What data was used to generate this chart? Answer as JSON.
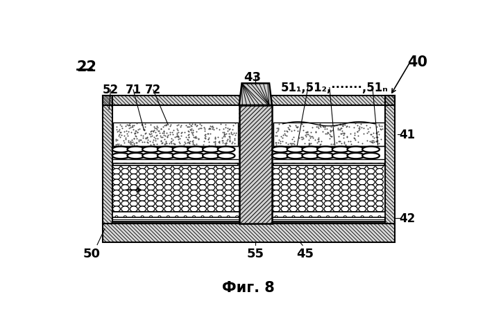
{
  "bg_color": "#ffffff",
  "line_color": "#000000",
  "fig_width": 6.99,
  "fig_height": 4.85,
  "title": "Фиг. 8",
  "label_22": "22",
  "label_40": "40",
  "label_41": "41",
  "label_42": "42",
  "label_43": "43",
  "label_45": "45",
  "label_50": "50",
  "label_51": "51₁,51₂,·······,51ₙ",
  "label_52": "52",
  "label_55": "55",
  "label_71": "71",
  "label_72": "72"
}
